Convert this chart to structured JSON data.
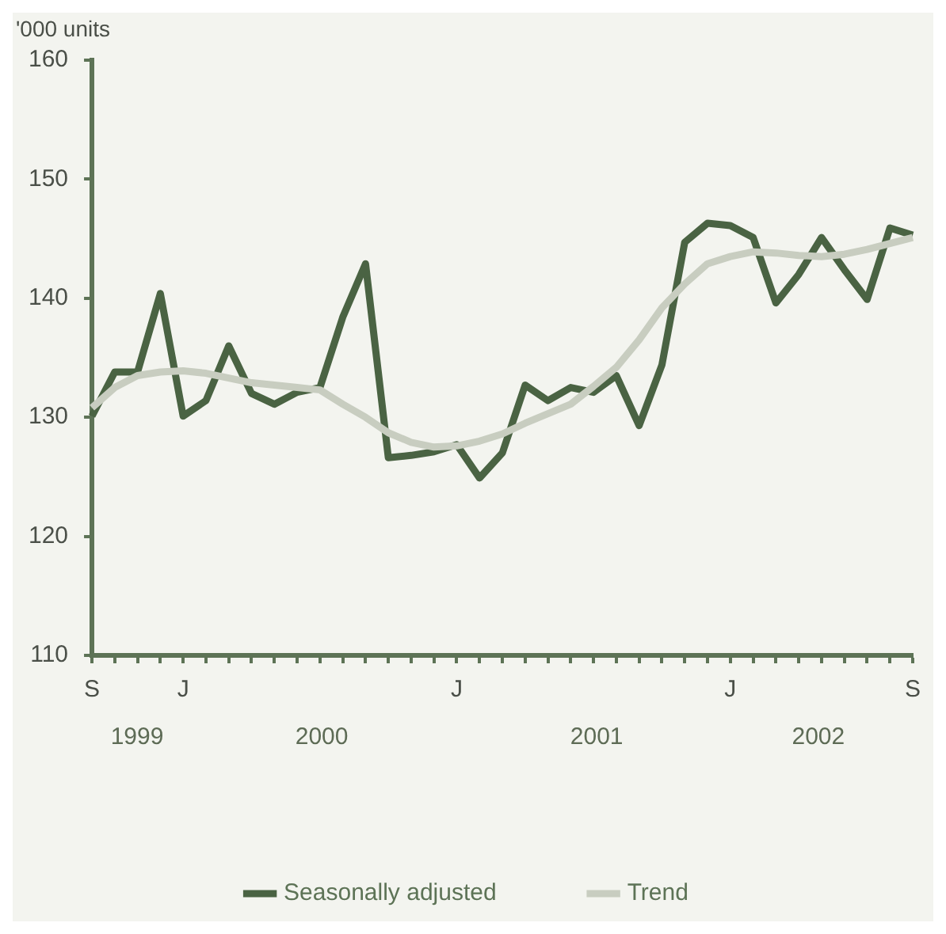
{
  "chart_data": {
    "type": "line",
    "ylabel": "'000 units",
    "categories": [
      "S",
      null,
      null,
      null,
      "J",
      null,
      null,
      null,
      null,
      null,
      null,
      null,
      null,
      null,
      null,
      null,
      "J",
      null,
      null,
      null,
      null,
      null,
      null,
      null,
      null,
      null,
      null,
      null,
      "J",
      null,
      null,
      null,
      null,
      null,
      null,
      null,
      "S"
    ],
    "annotations": [
      "1999",
      "2000",
      "2001",
      "2002"
    ],
    "series": [
      {
        "name": "Seasonally adjusted",
        "color": "#4a6343",
        "values": [
          130.1,
          133.8,
          133.8,
          140.4,
          130.1,
          131.4,
          136.0,
          132.0,
          131.1,
          132.1,
          132.5,
          138.4,
          142.9,
          126.6,
          126.8,
          127.1,
          127.7,
          124.9,
          127.0,
          132.7,
          131.4,
          132.5,
          132.1,
          133.5,
          129.3,
          134.4,
          144.7,
          146.3,
          146.1,
          145.1,
          139.6,
          142.0,
          145.1,
          142.4,
          139.9,
          145.9,
          145.3
        ]
      },
      {
        "name": "Trend",
        "color": "#c8cdc0",
        "values": [
          130.8,
          132.5,
          133.5,
          133.8,
          133.9,
          133.7,
          133.3,
          132.9,
          132.7,
          132.5,
          132.3,
          131.1,
          130.0,
          128.7,
          127.9,
          127.5,
          127.6,
          128.0,
          128.6,
          129.5,
          130.3,
          131.1,
          132.6,
          134.2,
          136.5,
          139.2,
          141.2,
          142.9,
          143.5,
          143.9,
          143.8,
          143.6,
          143.5,
          143.7,
          144.1,
          144.6,
          145.1
        ]
      }
    ],
    "ylim": [
      110,
      160
    ],
    "yticks": [
      110,
      120,
      130,
      140,
      150,
      160
    ],
    "grid": false,
    "legend": "bottom",
    "marker": "none",
    "line_style": "solid"
  }
}
